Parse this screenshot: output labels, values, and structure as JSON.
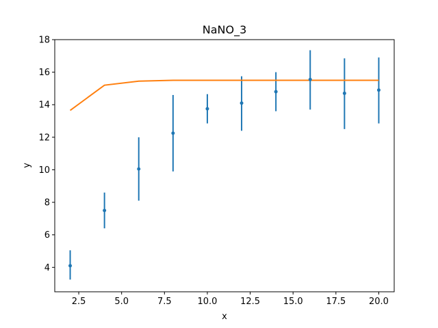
{
  "chart_data": {
    "type": "scatter",
    "title": "NaNO_3",
    "xlabel": "x",
    "ylabel": "y",
    "xlim": [
      1.1,
      20.9
    ],
    "ylim": [
      2.5,
      18
    ],
    "xticks": [
      2.5,
      5.0,
      7.5,
      10.0,
      12.5,
      15.0,
      17.5,
      20.0
    ],
    "xtick_labels": [
      "2.5",
      "5.0",
      "7.5",
      "10.0",
      "12.5",
      "15.0",
      "17.5",
      "20.0"
    ],
    "yticks": [
      4,
      6,
      8,
      10,
      12,
      14,
      16,
      18
    ],
    "ytick_labels": [
      "4",
      "6",
      "8",
      "10",
      "12",
      "14",
      "16",
      "18"
    ],
    "grid": false,
    "colors": {
      "points": "#1f77b4",
      "line": "#ff7f0e"
    },
    "series": [
      {
        "type": "errorbar",
        "x": [
          2,
          4,
          6,
          8,
          10,
          12,
          14,
          16,
          18,
          20
        ],
        "y": [
          4.1,
          7.5,
          10.05,
          12.25,
          13.75,
          14.1,
          14.8,
          15.55,
          14.7,
          14.9
        ],
        "yerr_low": [
          3.25,
          6.4,
          8.1,
          9.9,
          12.85,
          12.4,
          13.6,
          13.7,
          12.5,
          12.85
        ],
        "yerr_high": [
          5.05,
          8.6,
          12.0,
          14.6,
          14.65,
          15.75,
          16.0,
          17.35,
          16.85,
          16.9
        ]
      },
      {
        "type": "line",
        "x": [
          2,
          4,
          6,
          8,
          10,
          12,
          14,
          16,
          18,
          20
        ],
        "y": [
          13.65,
          15.2,
          15.45,
          15.5,
          15.5,
          15.5,
          15.5,
          15.5,
          15.5,
          15.5
        ]
      }
    ]
  }
}
